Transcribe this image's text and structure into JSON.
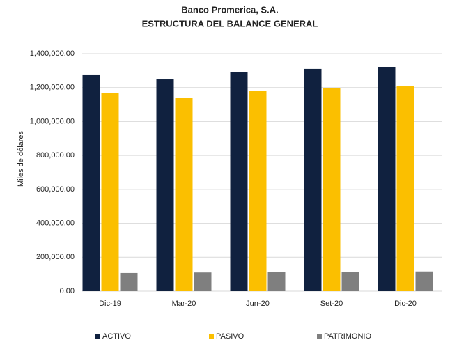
{
  "chart_data": {
    "type": "bar",
    "title": [
      "Banco Promerica, S.A.",
      "ESTRUCTURA DEL BALANCE GENERAL"
    ],
    "y_label": "Miles de dólares",
    "categories": [
      "Dic-19",
      "Mar-20",
      "Jun-20",
      "Set-20",
      "Dic-20"
    ],
    "series": [
      {
        "name": "ACTIVO",
        "color": "#10213f",
        "values": [
          1277000,
          1248000,
          1293000,
          1310000,
          1322000
        ]
      },
      {
        "name": "PASIVO",
        "color": "#fbbf00",
        "values": [
          1170000,
          1141000,
          1182000,
          1195000,
          1207000
        ]
      },
      {
        "name": "PATRIMONIO",
        "color": "#7f7f7f",
        "values": [
          107000,
          110000,
          111000,
          112000,
          116000
        ]
      }
    ],
    "ylim": [
      0,
      1400000
    ],
    "yticks": [
      {
        "value": 0,
        "label": "0.00"
      },
      {
        "value": 200000,
        "label": "200,000.00"
      },
      {
        "value": 400000,
        "label": "400,000.00"
      },
      {
        "value": 600000,
        "label": "600,000.00"
      },
      {
        "value": 800000,
        "label": "800,000.00"
      },
      {
        "value": 1000000,
        "label": "1,000,000.00"
      },
      {
        "value": 1200000,
        "label": "1,200,000.00"
      },
      {
        "value": 1400000,
        "label": "1,400,000.00"
      }
    ],
    "grid": true,
    "legend": "bottom"
  }
}
